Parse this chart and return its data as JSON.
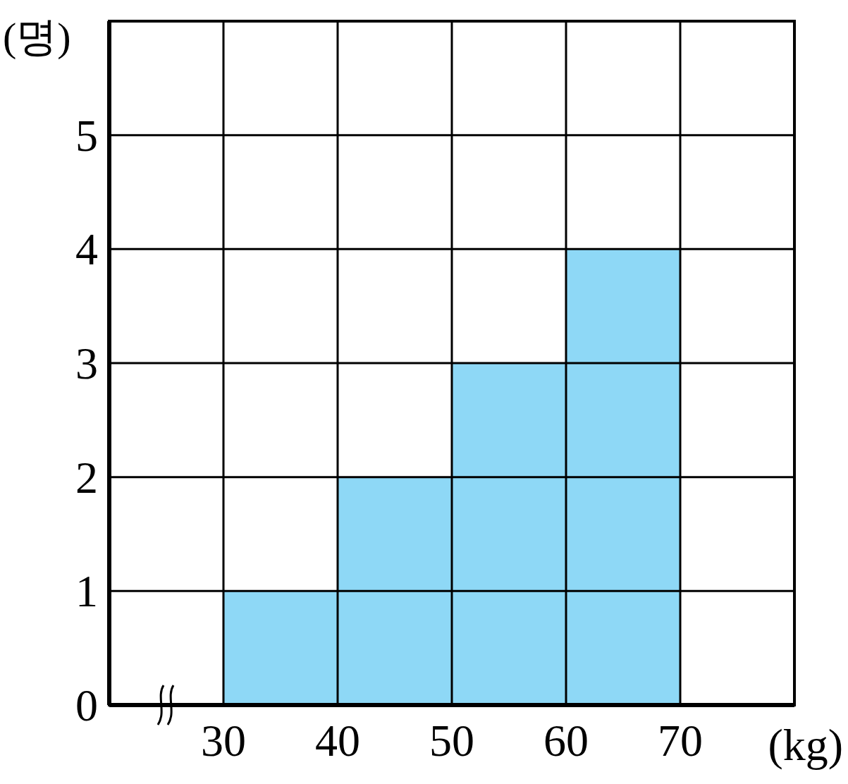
{
  "chart_data": {
    "type": "histogram",
    "xlabel": "(kg)",
    "ylabel": "(명)",
    "bins": [
      30,
      40,
      50,
      60,
      70
    ],
    "values": [
      1,
      2,
      3,
      4
    ],
    "color": "#8ed8f6",
    "xlim": [
      20,
      80
    ],
    "xticks": [
      {
        "value": 20,
        "label": null
      },
      30,
      40,
      50,
      60,
      70
    ],
    "ylim": [
      0,
      6
    ],
    "yticks": [
      0,
      1,
      2,
      3,
      4,
      5
    ],
    "grid": true
  }
}
